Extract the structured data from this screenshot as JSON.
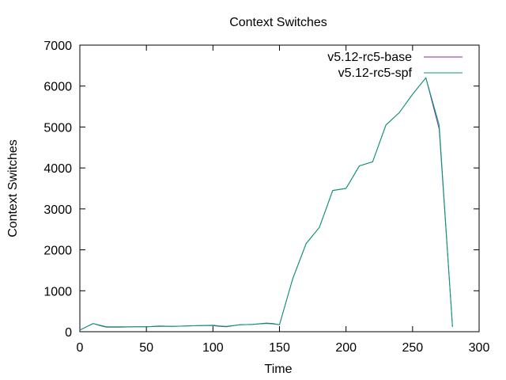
{
  "chart_data": {
    "type": "line",
    "title": "Context Switches",
    "xlabel": "Time",
    "ylabel": "Context Switches",
    "xlim": [
      0,
      300
    ],
    "ylim": [
      0,
      7000
    ],
    "xticks": [
      0,
      50,
      100,
      150,
      200,
      250,
      300
    ],
    "yticks": [
      0,
      1000,
      2000,
      3000,
      4000,
      5000,
      6000,
      7000
    ],
    "grid": false,
    "legend_position": "top-right",
    "series": [
      {
        "name": "v5.12-rc5-base",
        "color": "#7b2fa7",
        "x": [
          0,
          5,
          10,
          15,
          20,
          30,
          40,
          50,
          60,
          70,
          80,
          90,
          100,
          105,
          110,
          120,
          130,
          140,
          145,
          150,
          160,
          170,
          180,
          190,
          200,
          210,
          220,
          230,
          240,
          250,
          260,
          270,
          280
        ],
        "y": [
          40,
          120,
          200,
          150,
          110,
          110,
          120,
          120,
          130,
          130,
          140,
          150,
          150,
          130,
          120,
          170,
          180,
          210,
          200,
          170,
          1300,
          2150,
          2550,
          3450,
          3500,
          4050,
          4150,
          5050,
          5350,
          5800,
          6200,
          4950,
          120
        ]
      },
      {
        "name": "v5.12-rc5-spf",
        "color": "#009e73",
        "x": [
          0,
          5,
          10,
          15,
          20,
          30,
          40,
          50,
          60,
          70,
          80,
          90,
          100,
          105,
          110,
          120,
          130,
          140,
          145,
          150,
          160,
          170,
          180,
          190,
          200,
          210,
          220,
          230,
          240,
          250,
          260,
          270,
          280
        ],
        "y": [
          40,
          120,
          200,
          160,
          120,
          120,
          120,
          120,
          140,
          130,
          140,
          150,
          160,
          140,
          130,
          170,
          180,
          200,
          190,
          170,
          1300,
          2150,
          2550,
          3450,
          3500,
          4050,
          4150,
          5050,
          5350,
          5800,
          6200,
          5050,
          120
        ]
      }
    ]
  }
}
